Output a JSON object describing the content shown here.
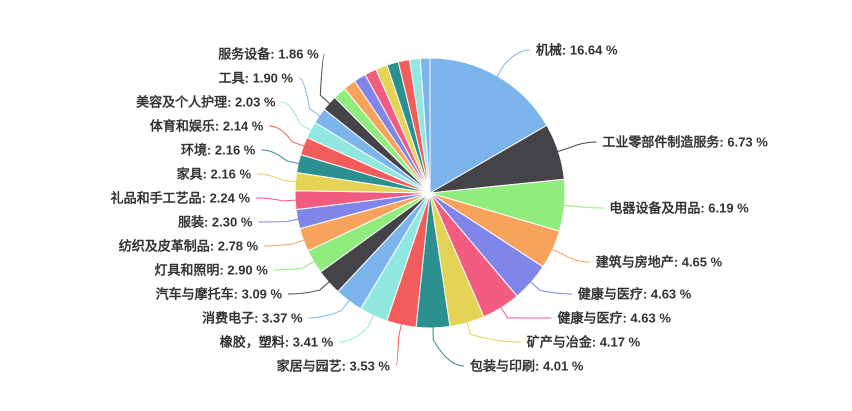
{
  "page": {
    "background_color": "#ffffff",
    "title": ""
  },
  "chart_data": {
    "type": "pie",
    "title": "",
    "legend_position": "none",
    "grid": false,
    "start_angle": "top",
    "direction": "clockwise",
    "data_label_format": "{name}: {percent} %",
    "data_label_color": "#333333",
    "slice_border_color": "#ffffff",
    "palette": [
      "#7cb5ec",
      "#434348",
      "#90ed7d",
      "#f7a35c",
      "#8085e9",
      "#f15c80",
      "#e4d354",
      "#2b908f",
      "#f45b5b",
      "#91e8e1"
    ],
    "slices": [
      {
        "name": "机械",
        "percent": 16.64,
        "color": "#7cb5ec",
        "labeled": true
      },
      {
        "name": "工业零部件制造服务",
        "percent": 6.73,
        "color": "#434348",
        "labeled": true
      },
      {
        "name": "电器设备及用品",
        "percent": 6.19,
        "color": "#90ed7d",
        "labeled": true
      },
      {
        "name": "建筑与房地产",
        "percent": 4.65,
        "color": "#f7a35c",
        "labeled": true
      },
      {
        "name": "健康与医疗",
        "percent": 4.63,
        "color": "#8085e9",
        "labeled": true
      },
      {
        "name": "健康与医疗",
        "percent": 4.63,
        "color": "#f15c80",
        "labeled": true
      },
      {
        "name": "矿产与冶金",
        "percent": 4.17,
        "color": "#e4d354",
        "labeled": true
      },
      {
        "name": "包装与印刷",
        "percent": 4.01,
        "color": "#2b908f",
        "labeled": true
      },
      {
        "name": "家居与园艺",
        "percent": 3.53,
        "color": "#f45b5b",
        "labeled": true
      },
      {
        "name": "橡胶，塑料",
        "percent": 3.41,
        "color": "#91e8e1",
        "labeled": true
      },
      {
        "name": "消费电子",
        "percent": 3.37,
        "color": "#7cb5ec",
        "labeled": true
      },
      {
        "name": "汽车与摩托车",
        "percent": 3.09,
        "color": "#434348",
        "labeled": true
      },
      {
        "name": "灯具和照明",
        "percent": 2.9,
        "color": "#90ed7d",
        "labeled": true
      },
      {
        "name": "纺织及皮革制品",
        "percent": 2.78,
        "color": "#f7a35c",
        "labeled": true
      },
      {
        "name": "服装",
        "percent": 2.3,
        "color": "#8085e9",
        "labeled": true
      },
      {
        "name": "礼品和手工艺品",
        "percent": 2.24,
        "color": "#f15c80",
        "labeled": true
      },
      {
        "name": "家具",
        "percent": 2.16,
        "color": "#e4d354",
        "labeled": true
      },
      {
        "name": "环境",
        "percent": 2.16,
        "color": "#2b908f",
        "labeled": true
      },
      {
        "name": "体育和娱乐",
        "percent": 2.14,
        "color": "#f45b5b",
        "labeled": true
      },
      {
        "name": "美容及个人护理",
        "percent": 2.03,
        "color": "#91e8e1",
        "labeled": true
      },
      {
        "name": "工具",
        "percent": 1.9,
        "color": "#7cb5ec",
        "labeled": true
      },
      {
        "name": "服务设备",
        "percent": 1.86,
        "color": "#434348",
        "labeled": true
      },
      {
        "name": "",
        "percent": 1.55,
        "color": "#90ed7d",
        "labeled": false,
        "estimated": true
      },
      {
        "name": "",
        "percent": 1.5,
        "color": "#f7a35c",
        "labeled": false,
        "estimated": true
      },
      {
        "name": "",
        "percent": 1.45,
        "color": "#8085e9",
        "labeled": false,
        "estimated": true
      },
      {
        "name": "",
        "percent": 1.42,
        "color": "#f15c80",
        "labeled": false,
        "estimated": true
      },
      {
        "name": "",
        "percent": 1.4,
        "color": "#e4d354",
        "labeled": false,
        "estimated": true
      },
      {
        "name": "",
        "percent": 1.38,
        "color": "#2b908f",
        "labeled": false,
        "estimated": true
      },
      {
        "name": "",
        "percent": 1.35,
        "color": "#f45b5b",
        "labeled": false,
        "estimated": true
      },
      {
        "name": "",
        "percent": 1.28,
        "color": "#91e8e1",
        "labeled": false,
        "estimated": true
      },
      {
        "name": "",
        "percent": 1.15,
        "color": "#7cb5ec",
        "labeled": false,
        "estimated": true
      }
    ]
  }
}
